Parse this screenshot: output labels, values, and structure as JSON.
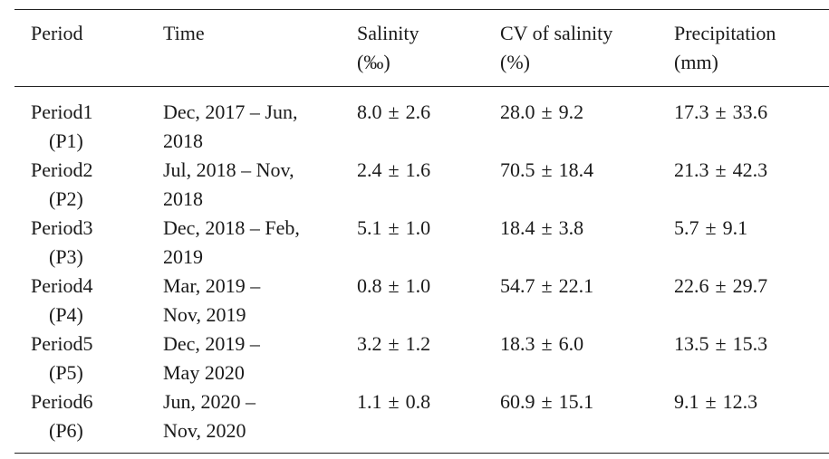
{
  "headers": {
    "period": "Period",
    "time": "Time",
    "salinity": [
      "Salinity",
      "(‰)"
    ],
    "cv": [
      "CV of salinity",
      "(%)"
    ],
    "precip": [
      "Precipitation",
      "(mm)"
    ]
  },
  "rows": [
    {
      "period": "Period1",
      "code": "(P1)",
      "time": [
        "Dec, 2017 – Jun,",
        "2018"
      ],
      "salinity_mean": "8.0",
      "salinity_sd": "2.6",
      "cv_mean": "28.0",
      "cv_sd": "9.2",
      "precip_mean": "17.3",
      "precip_sd": "33.6"
    },
    {
      "period": "Period2",
      "code": "(P2)",
      "time": [
        "Jul, 2018 – Nov,",
        "2018"
      ],
      "salinity_mean": "2.4",
      "salinity_sd": "1.6",
      "cv_mean": "70.5",
      "cv_sd": "18.4",
      "precip_mean": "21.3",
      "precip_sd": "42.3"
    },
    {
      "period": "Period3",
      "code": "(P3)",
      "time": [
        "Dec, 2018 – Feb,",
        "2019"
      ],
      "salinity_mean": "5.1",
      "salinity_sd": "1.0",
      "cv_mean": "18.4",
      "cv_sd": "3.8",
      "precip_mean": "5.7",
      "precip_sd": "9.1"
    },
    {
      "period": "Period4",
      "code": "(P4)",
      "time": [
        "Mar, 2019 –",
        "Nov, 2019"
      ],
      "salinity_mean": "0.8",
      "salinity_sd": "1.0",
      "cv_mean": "54.7",
      "cv_sd": "22.1",
      "precip_mean": "22.6",
      "precip_sd": "29.7"
    },
    {
      "period": "Period5",
      "code": "(P5)",
      "time": [
        "Dec, 2019 –",
        "May 2020"
      ],
      "salinity_mean": "3.2",
      "salinity_sd": "1.2",
      "cv_mean": "18.3",
      "cv_sd": "6.0",
      "precip_mean": "13.5",
      "precip_sd": "15.3"
    },
    {
      "period": "Period6",
      "code": "(P6)",
      "time": [
        "Jun, 2020 –",
        "Nov, 2020"
      ],
      "salinity_mean": "1.1",
      "salinity_sd": "0.8",
      "cv_mean": "60.9",
      "cv_sd": "15.1",
      "precip_mean": "9.1",
      "precip_sd": "12.3"
    }
  ],
  "pm_symbol": "±"
}
